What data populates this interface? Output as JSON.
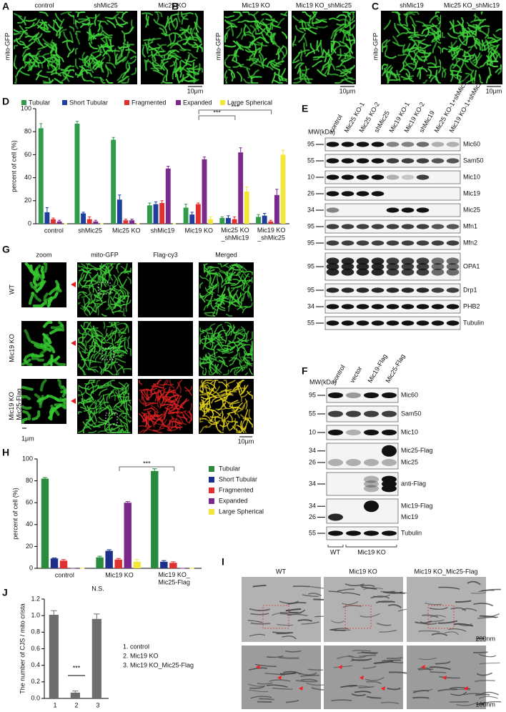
{
  "panels": {
    "A": {
      "letter": "A",
      "ylabel": "mito-GFP",
      "images": [
        "control",
        "shMic25",
        "Mic25 KO"
      ],
      "scale": "10μm"
    },
    "B": {
      "letter": "B",
      "ylabel": "mito-GFP",
      "images": [
        "Mic19 KO",
        "Mic19 KO_shMic25"
      ],
      "scale": "10μm"
    },
    "C": {
      "letter": "C",
      "ylabel": "mito-GFP",
      "images": [
        "shMic19",
        "Mic25 KO_shMic19"
      ],
      "scale": "10μm"
    },
    "D": {
      "letter": "D"
    },
    "E": {
      "letter": "E",
      "mw_header": "MW(kDa)",
      "lanes": [
        "control",
        "Mic25 KO-1",
        "Mic25 KO-2",
        "shMic25",
        "Mic19 KO-1",
        "Mic19 KO-2",
        "shMic19",
        "Mic25 KO-1+shMic19",
        "Mic19 KO-1+shMic25"
      ],
      "rows": [
        {
          "mw": [
            95
          ],
          "proteins": [
            "Mic60"
          ]
        },
        {
          "mw": [
            55
          ],
          "proteins": [
            "Sam50"
          ]
        },
        {
          "mw": [
            10
          ],
          "proteins": [
            "Mic10"
          ]
        },
        {
          "mw": [
            26
          ],
          "proteins": [
            "Mic19"
          ]
        },
        {
          "mw": [
            34
          ],
          "proteins": [
            "Mic25"
          ]
        },
        {
          "mw": [
            95
          ],
          "proteins": [
            "Mfn1"
          ]
        },
        {
          "mw": [
            95
          ],
          "proteins": [
            "Mfn2"
          ]
        },
        {
          "mw": [
            95
          ],
          "proteins": [
            "OPA1"
          ]
        },
        {
          "mw": [
            95
          ],
          "proteins": [
            "Drp1"
          ]
        },
        {
          "mw": [
            34
          ],
          "proteins": [
            "PHB2"
          ]
        },
        {
          "mw": [
            55
          ],
          "proteins": [
            "Tubulin"
          ]
        }
      ]
    },
    "F": {
      "letter": "F",
      "mw_header": "MW(kDa)",
      "lanes": [
        "control",
        "vector",
        "Mic19-Flag",
        "Mic25-Flag"
      ],
      "rows": [
        {
          "mw": [
            95
          ],
          "proteins": [
            "Mic60"
          ]
        },
        {
          "mw": [
            55
          ],
          "proteins": [
            "Sam50"
          ]
        },
        {
          "mw": [
            10
          ],
          "proteins": [
            "Mic10"
          ]
        },
        {
          "mw": [
            34,
            26
          ],
          "proteins": [
            "Mic25-Flag",
            "Mic25"
          ]
        },
        {
          "mw": [
            34
          ],
          "proteins": [
            "anti-Flag"
          ]
        },
        {
          "mw": [
            34,
            26
          ],
          "proteins": [
            "Mic19-Flag",
            "Mic19"
          ]
        },
        {
          "mw": [
            55
          ],
          "proteins": [
            "Tubulin"
          ]
        }
      ],
      "groups": [
        "WT",
        "Mic19 KO"
      ]
    },
    "G": {
      "letter": "G",
      "columns": [
        "zoom",
        "mito-GFP",
        "Flag-cy3",
        "Merged"
      ],
      "rows": [
        "WT",
        "Mic19 KO",
        "Mic19 KO\n_Mic25-Flag"
      ],
      "scales": [
        "1μm",
        "10μm"
      ]
    },
    "H": {
      "letter": "H"
    },
    "I": {
      "letter": "I",
      "columns": [
        "WT",
        "Mic19 KO",
        "Mic19 KO_Mic25-Flag"
      ],
      "scales": [
        "200nm",
        "100nm"
      ]
    },
    "J": {
      "letter": "J",
      "legend": [
        "1. control",
        "2. Mic19 KO",
        "3. Mic19 KO_Mic25-Flag"
      ]
    }
  },
  "chart_data": [
    {
      "type": "bar",
      "ylabel": "percent of cell (%)",
      "categories": [
        "control",
        "shMic25",
        "Mic25 KO",
        "shMic19",
        "Mic19 KO",
        "Mic25 KO\n_shMic19",
        "Mic19 KO\n_shMic25"
      ],
      "ylim": [
        0,
        100
      ],
      "yticks": [
        0,
        20,
        40,
        60,
        80,
        100
      ],
      "legend": "top",
      "annotations": [
        "***",
        "***"
      ],
      "series": [
        {
          "name": "Tubular",
          "color": "#2e9c4a",
          "values": [
            83,
            87,
            73,
            16,
            14,
            5,
            6
          ],
          "errors": [
            4,
            2,
            2,
            2,
            3,
            1,
            2
          ]
        },
        {
          "name": "Short Tubular",
          "color": "#1f3f9f",
          "values": [
            10,
            9,
            21,
            17,
            8,
            5,
            7
          ],
          "errors": [
            4,
            1,
            4,
            2,
            2,
            2,
            2
          ]
        },
        {
          "name": "Fragmented",
          "color": "#e03030",
          "values": [
            4,
            4,
            3,
            18,
            17,
            4,
            2
          ],
          "errors": [
            1,
            2,
            1,
            2,
            1,
            2,
            1
          ]
        },
        {
          "name": "Expanded",
          "color": "#7b2a8c",
          "values": [
            2,
            2,
            3,
            48,
            56,
            62,
            25
          ],
          "errors": [
            1,
            1,
            1,
            2,
            2,
            4,
            5
          ]
        },
        {
          "name": "Large Spherical",
          "color": "#f2e63b",
          "values": [
            0,
            0,
            0,
            0,
            4,
            28,
            60
          ],
          "errors": [
            0,
            0,
            0,
            0,
            2,
            4,
            4
          ]
        }
      ]
    },
    {
      "type": "bar",
      "ylabel": "percent of cell (%)",
      "categories": [
        "control",
        "Mic19 KO",
        "Mic19 KO_\nMic25-Flag"
      ],
      "ylim": [
        0,
        100
      ],
      "yticks": [
        0,
        20,
        40,
        60,
        80,
        100
      ],
      "legend": "right",
      "annotations": [
        "***"
      ],
      "series": [
        {
          "name": "Tubular",
          "color": "#2a8a3e",
          "values": [
            82,
            10,
            89
          ],
          "errors": [
            1,
            1,
            2
          ]
        },
        {
          "name": "Short Tubular",
          "color": "#1d2f8a",
          "values": [
            9,
            16,
            6
          ],
          "errors": [
            0.5,
            1,
            1
          ]
        },
        {
          "name": "Fragmented",
          "color": "#e03030",
          "values": [
            7,
            8,
            5
          ],
          "errors": [
            1,
            1,
            1
          ]
        },
        {
          "name": "Expanded",
          "color": "#7b2a8c",
          "values": [
            0,
            60,
            0
          ],
          "errors": [
            0,
            1,
            0
          ]
        },
        {
          "name": "Large Spherical",
          "color": "#f2e63b",
          "values": [
            0,
            6,
            0
          ],
          "errors": [
            0,
            2,
            0
          ]
        }
      ]
    },
    {
      "type": "bar",
      "ylabel": "The number of CJS / mito crista",
      "categories": [
        "1",
        "2",
        "3"
      ],
      "values": [
        1.01,
        0.07,
        0.96
      ],
      "errors": [
        0.05,
        0.02,
        0.06
      ],
      "color": "#6e6e6e",
      "ylim": [
        0,
        1.2
      ],
      "yticks": [
        {
          "value": 0,
          "label": "0.0"
        },
        0.2,
        0.4,
        0.6,
        0.8,
        {
          "value": 1,
          "label": "1.0"
        },
        1.2
      ],
      "annotations": [
        "***",
        "N.S."
      ]
    }
  ]
}
